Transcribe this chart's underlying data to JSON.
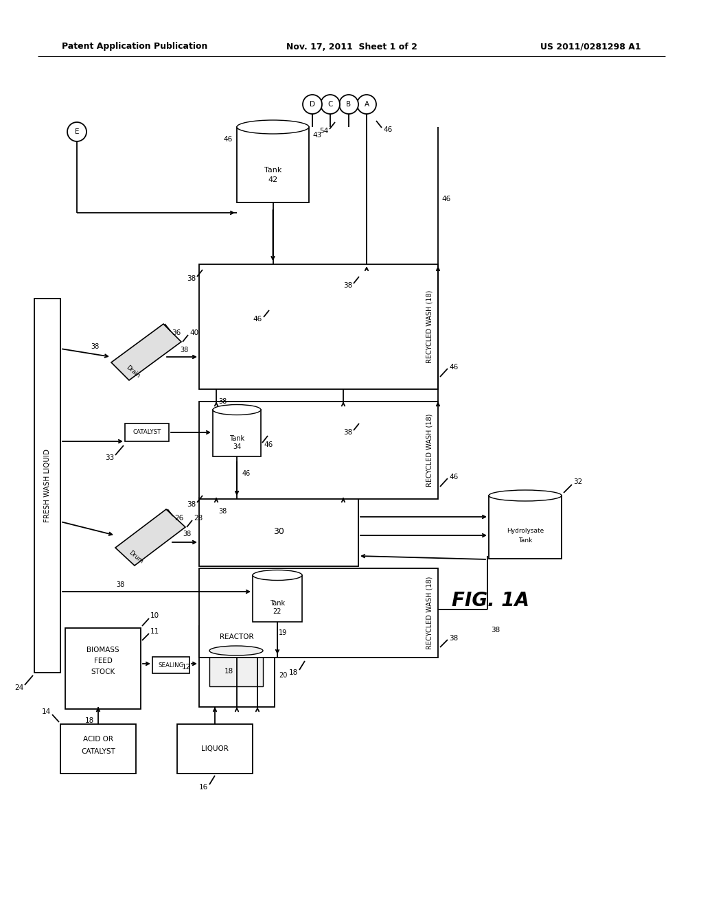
{
  "bg_color": "#ffffff",
  "header_left": "Patent Application Publication",
  "header_center": "Nov. 17, 2011  Sheet 1 of 2",
  "header_right": "US 2011/0281298 A1",
  "fig_label": "FIG. 1A"
}
